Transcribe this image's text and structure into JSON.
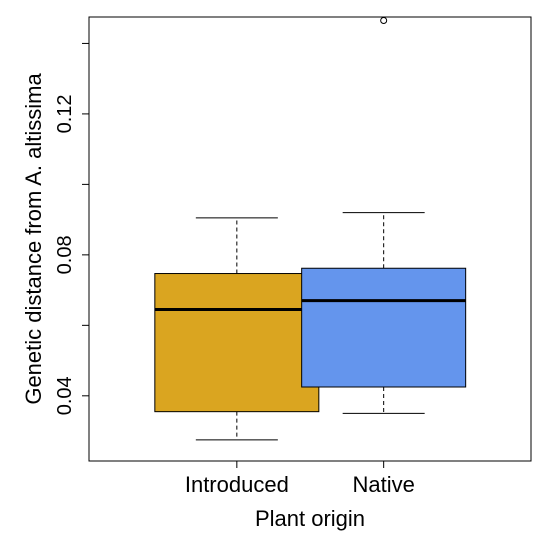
{
  "chart_data": {
    "type": "boxplot",
    "xlabel": "Plant origin",
    "ylabel": "Genetic distance from A. altissima",
    "ylim": [
      0.0215,
      0.1475
    ],
    "yticks": [
      0.04,
      0.08,
      0.12
    ],
    "ytick_labels": [
      "0.04",
      "0.08",
      "0.12"
    ],
    "grid": false,
    "categories": [
      "Introduced",
      "Native"
    ],
    "boxes": [
      {
        "category": "Introduced",
        "whisker_low": 0.0275,
        "q1": 0.0355,
        "median": 0.0645,
        "q3": 0.0747,
        "whisker_high": 0.0905,
        "outliers": [],
        "color": "#DAA520"
      },
      {
        "category": "Native",
        "whisker_low": 0.035,
        "q1": 0.0425,
        "median": 0.067,
        "q3": 0.0762,
        "whisker_high": 0.092,
        "outliers": [
          0.1465
        ],
        "color": "#6495ED"
      }
    ]
  }
}
